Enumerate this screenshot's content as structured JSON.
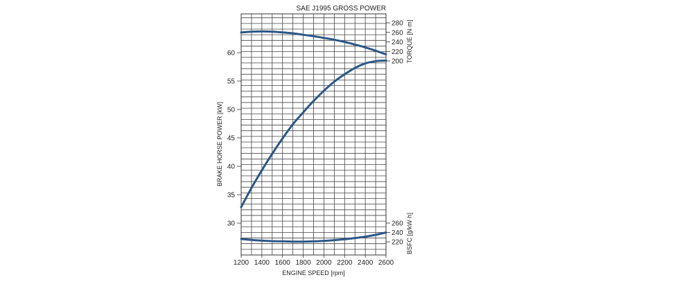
{
  "chart_data": {
    "type": "line",
    "title": "SAE J1995 GROSS POWER",
    "xlabel": "ENGINE SPEED [rpm]",
    "xlim": [
      1200,
      2600
    ],
    "x_ticks": [
      "1200",
      "1400",
      "1600",
      "1800",
      "2000",
      "2200",
      "2400",
      "2600"
    ],
    "grid": true,
    "axes": {
      "power": {
        "label": "BRAKE HORSE POWER [kW]",
        "ticks": [
          "30",
          "35",
          "40",
          "45",
          "50",
          "55",
          "60"
        ]
      },
      "torque": {
        "label": "TORQUE [N·m]",
        "ticks": [
          "200",
          "220",
          "240",
          "260",
          "280"
        ]
      },
      "bsfc": {
        "label": "BSFC [g/kW·h]",
        "ticks": [
          "220",
          "240",
          "260"
        ]
      }
    },
    "series": [
      {
        "axis": "torque",
        "x": [
          1200,
          1300,
          1400,
          1500,
          1600,
          1700,
          1800,
          1900,
          2000,
          2100,
          2200,
          2300,
          2400,
          2500,
          2600
        ],
        "values": [
          260,
          261.5,
          262,
          261.5,
          260,
          258,
          255,
          252,
          248.5,
          244.5,
          240,
          234.5,
          228.5,
          221.5,
          214
        ]
      },
      {
        "axis": "power",
        "x": [
          1200,
          1300,
          1400,
          1500,
          1600,
          1700,
          1800,
          1900,
          2000,
          2100,
          2200,
          2300,
          2400,
          2500,
          2600
        ],
        "values": [
          32.8,
          36.2,
          39.3,
          42.2,
          44.9,
          47.4,
          49.5,
          51.5,
          53.3,
          54.9,
          56.2,
          57.3,
          58.1,
          58.5,
          58.6
        ]
      },
      {
        "axis": "bsfc",
        "x": [
          1200,
          1300,
          1400,
          1500,
          1600,
          1700,
          1800,
          1900,
          2000,
          2100,
          2200,
          2300,
          2400,
          2500,
          2600
        ],
        "values": [
          226,
          224,
          222.5,
          221.5,
          221,
          220.5,
          220.5,
          221,
          222,
          223.5,
          225.5,
          228,
          231,
          235,
          240
        ]
      }
    ],
    "line_color": "#2b5787"
  }
}
